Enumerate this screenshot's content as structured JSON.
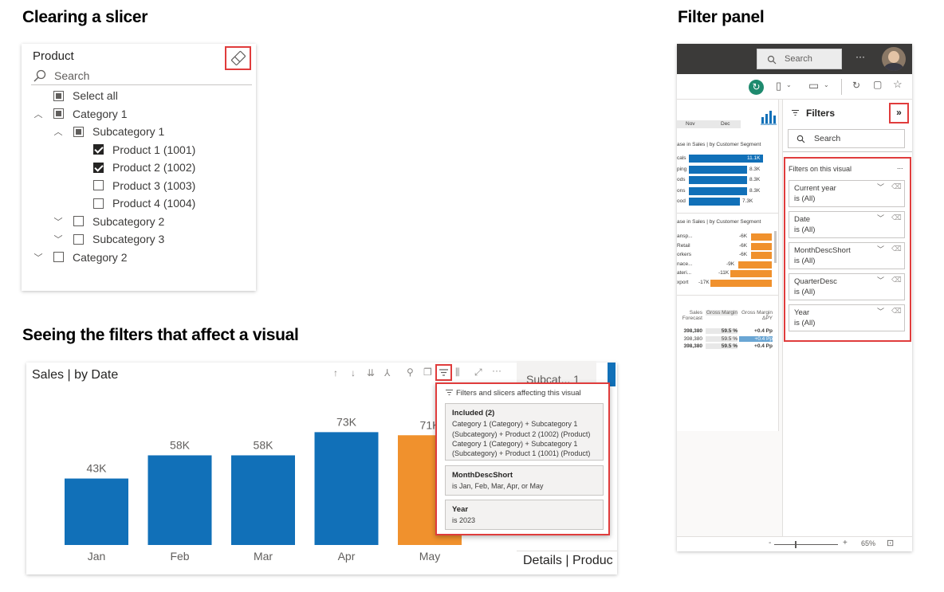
{
  "headings": {
    "clearing": "Clearing a slicer",
    "filter_panel": "Filter panel",
    "seeing": "Seeing the filters that affect a visual"
  },
  "slicer": {
    "title": "Product",
    "search_placeholder": "Search",
    "items": [
      {
        "label": "Select all",
        "state": "partial",
        "level": 0,
        "chevron": ""
      },
      {
        "label": "Category 1",
        "state": "partial",
        "level": 0,
        "chevron": "up"
      },
      {
        "label": "Subcategory 1",
        "state": "partial",
        "level": 1,
        "chevron": "up"
      },
      {
        "label": "Product 1 (1001)",
        "state": "checked",
        "level": 2,
        "chevron": ""
      },
      {
        "label": "Product 2 (1002)",
        "state": "checked",
        "level": 2,
        "chevron": ""
      },
      {
        "label": "Product 3 (1003)",
        "state": "unchecked",
        "level": 2,
        "chevron": ""
      },
      {
        "label": "Product 4 (1004)",
        "state": "unchecked",
        "level": 2,
        "chevron": ""
      },
      {
        "label": "Subcategory 2",
        "state": "unchecked",
        "level": 1,
        "chevron": "down"
      },
      {
        "label": "Subcategory 3",
        "state": "unchecked",
        "level": 1,
        "chevron": "down"
      },
      {
        "label": "Category 2",
        "state": "unchecked",
        "level": 0,
        "chevron": "down"
      }
    ]
  },
  "chart": {
    "title": "Sales | by Date",
    "side_title": "Details | Produc",
    "side_top_text": "Subcat... 1"
  },
  "chart_data": {
    "type": "bar",
    "title": "Sales | by Date",
    "categories": [
      "Jan",
      "Feb",
      "Mar",
      "Apr",
      "May"
    ],
    "values": [
      43,
      58,
      58,
      73,
      71
    ],
    "value_labels": [
      "43K",
      "58K",
      "58K",
      "73K",
      "71K"
    ],
    "colors": [
      "#1170b8",
      "#1170b8",
      "#1170b8",
      "#1170b8",
      "#f0912d"
    ],
    "ylim": [
      0,
      100
    ],
    "grid": false,
    "xlabel": "",
    "ylabel": ""
  },
  "popup": {
    "header": "Filters and slicers affecting this visual",
    "cards": [
      {
        "title": "Included (2)",
        "lines": [
          "Category 1 (Category) + Subcategory 1",
          "(Subcategory) + Product 2 (1002) (Product)",
          "Category 1 (Category) + Subcategory 1",
          "(Subcategory) + Product 1 (1001) (Product)"
        ]
      },
      {
        "title": "MonthDescShort",
        "lines": [
          "is Jan, Feb, Mar, Apr, or May"
        ]
      },
      {
        "title": "Year",
        "lines": [
          "is 2023"
        ]
      }
    ]
  },
  "filter_panel": {
    "search_top": "Search",
    "more": "···",
    "title": "Filters",
    "search": "Search",
    "section": "Filters on this visual",
    "section_more": "...",
    "filters": [
      {
        "name": "Current year",
        "value": "is (All)"
      },
      {
        "name": "Date",
        "value": "is (All)"
      },
      {
        "name": "MonthDescShort",
        "value": "is (All)"
      },
      {
        "name": "QuarterDesc",
        "value": "is (All)"
      },
      {
        "name": "Year",
        "value": "is (All)"
      }
    ],
    "zoom": "65%",
    "report": {
      "months": [
        "Nov",
        "Dec"
      ],
      "title1": "ase in Sales | by Customer Segment",
      "bars1": [
        {
          "label": "cals",
          "value": "11.1K"
        },
        {
          "label": "ping",
          "value": "8.3K"
        },
        {
          "label": "ods",
          "value": "8.3K"
        },
        {
          "label": "ons",
          "value": "8.3K"
        },
        {
          "label": "ood",
          "value": "7.3K"
        }
      ],
      "title2": "ase in Sales | by Customer Segment",
      "bars2": [
        {
          "label": "ansp...",
          "value": "-6K"
        },
        {
          "label": "Retail",
          "value": "-6K"
        },
        {
          "label": "orkers",
          "value": "-6K"
        },
        {
          "label": "nace...",
          "value": "-9K"
        },
        {
          "label": "ateri...",
          "value": "-11K"
        },
        {
          "label": "xport",
          "value": "-17K"
        }
      ],
      "table_headers": [
        "Sales Forecast",
        "Gross Margin",
        "Gross Margin ΔPY"
      ],
      "table_rows": [
        [
          "398,380",
          "59.5 %",
          "+0.4 Pp"
        ],
        [
          "398,380",
          "59.5 %",
          "+0.4 Pp"
        ],
        [
          "398,380",
          "59.5 %",
          "+0.4 Pp"
        ]
      ]
    }
  }
}
